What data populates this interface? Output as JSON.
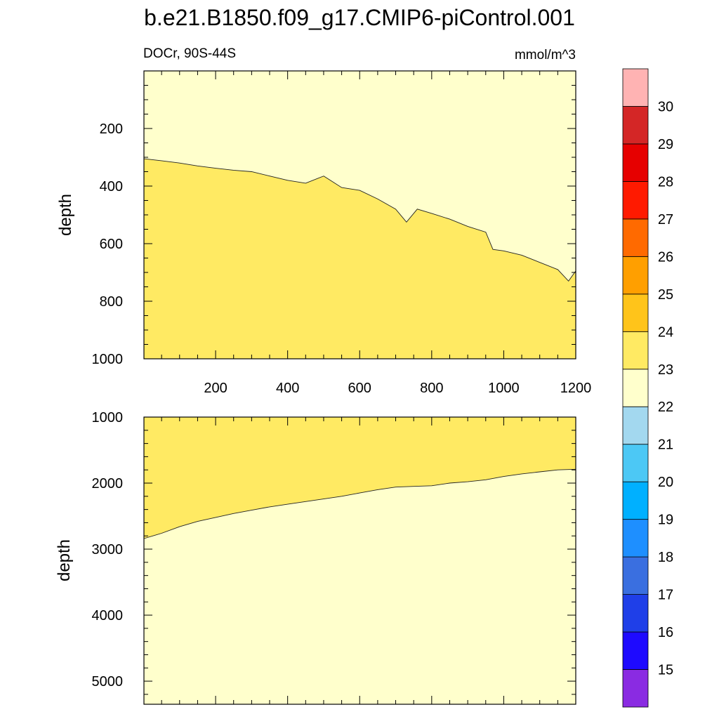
{
  "title": "b.e21.B1850.f09_g17.CMIP6-piControl.001",
  "subtitle_left": "DOCr, 90S-44S",
  "units": "mmol/m^3",
  "chart_data": [
    {
      "type": "heatmap",
      "ylabel": "depth",
      "xlim": [
        1,
        1200
      ],
      "ylim": [
        1000,
        0
      ],
      "xticks": [
        "200",
        "400",
        "600",
        "800",
        "1000",
        "1200"
      ],
      "yticks": [
        "200",
        "400",
        "600",
        "800",
        "1000"
      ],
      "region_above_contour": "22-23",
      "region_below_contour": "23-24",
      "contour_level": 23,
      "contour": {
        "x": [
          1,
          50,
          100,
          150,
          200,
          250,
          300,
          350,
          400,
          450,
          500,
          550,
          600,
          650,
          700,
          730,
          760,
          800,
          850,
          900,
          950,
          970,
          1000,
          1050,
          1100,
          1150,
          1180,
          1200
        ],
        "y": [
          305,
          312,
          320,
          330,
          338,
          345,
          350,
          365,
          380,
          390,
          365,
          405,
          415,
          445,
          480,
          525,
          480,
          495,
          515,
          540,
          560,
          620,
          625,
          640,
          665,
          690,
          730,
          695
        ]
      }
    },
    {
      "type": "heatmap",
      "ylabel": "depth",
      "xlim": [
        1,
        1200
      ],
      "ylim": [
        5350,
        1000
      ],
      "yticks": [
        "1000",
        "2000",
        "3000",
        "4000",
        "5000"
      ],
      "region_above_contour": "23-24",
      "region_below_contour": "22-23",
      "contour_level": 23,
      "contour": {
        "x": [
          1,
          50,
          100,
          150,
          200,
          250,
          300,
          350,
          400,
          450,
          500,
          550,
          600,
          650,
          700,
          750,
          800,
          850,
          900,
          950,
          1000,
          1050,
          1100,
          1150,
          1200
        ],
        "y": [
          2840,
          2760,
          2660,
          2580,
          2520,
          2460,
          2410,
          2360,
          2320,
          2280,
          2240,
          2200,
          2150,
          2100,
          2060,
          2050,
          2040,
          2000,
          1980,
          1950,
          1900,
          1860,
          1830,
          1800,
          1790
        ]
      }
    }
  ],
  "colorbar": {
    "labels": [
      "15",
      "16",
      "17",
      "18",
      "19",
      "20",
      "21",
      "22",
      "23",
      "24",
      "25",
      "26",
      "27",
      "28",
      "29",
      "30"
    ],
    "colors": [
      "#8a2be2",
      "#1e0aff",
      "#1f3fe8",
      "#3a6fe0",
      "#1e8fff",
      "#00b0ff",
      "#4cc8f5",
      "#a3d8ef",
      "#ffffcc",
      "#ffea63",
      "#ffc41a",
      "#ff9f00",
      "#ff6a00",
      "#ff1a00",
      "#e60000",
      "#d42626",
      "#ffb3b3"
    ]
  }
}
